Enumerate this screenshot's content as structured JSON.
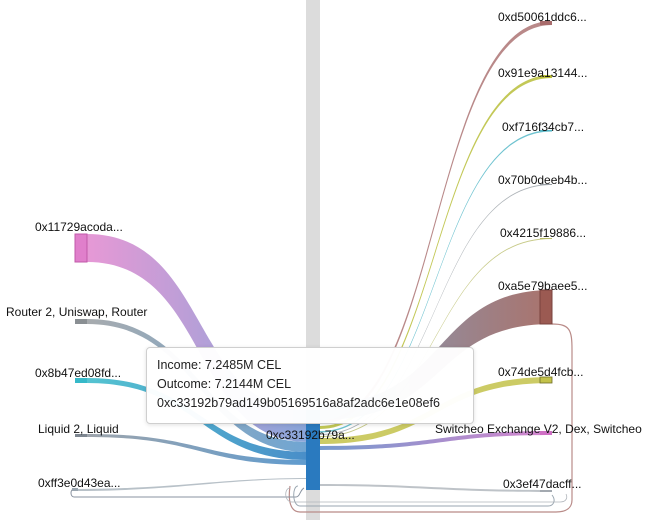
{
  "sources": [
    {
      "label": "0x11729acoda...",
      "color": "#e07fcb"
    },
    {
      "label": "Router 2, Uniswap, Router",
      "color": "#8a8f93"
    },
    {
      "label": "0x8b47ed08fd...",
      "color": "#36b9c9"
    },
    {
      "label": "Liquid 2, Liquid",
      "color": "#7d8690"
    },
    {
      "label": "0xff3e0d43ea...",
      "color": "#9aa6b0"
    }
  ],
  "center": {
    "label": "0xc33192b79a...",
    "color": "#2a7abf"
  },
  "targets": [
    {
      "label": "0xd50061ddc6...",
      "color": "#a86c6c"
    },
    {
      "label": "0x91e9a13144...",
      "color": "#b9be3a"
    },
    {
      "label": "0xf716f34cb7...",
      "color": "#56b8c8"
    },
    {
      "label": "0x70b0deeb4b...",
      "color": "#9aa0a6"
    },
    {
      "label": "0x4215f19886...",
      "color": "#b9bd6a"
    },
    {
      "label": "0xa5e79baee5...",
      "color": "#9b5a52"
    },
    {
      "label": "0x74de5d4fcb...",
      "color": "#c3c24a"
    },
    {
      "label": "Switcheo Exchange V2, Dex, Switcheo",
      "color": "#cf6fc4"
    },
    {
      "label": "0x3ef47dacff...",
      "color": "#a3a9b0"
    }
  ],
  "tooltip": {
    "income": "Income: 7.2485M CEL",
    "outcome": "Outcome: 7.2144M CEL",
    "address": "0xc33192b79ad149b05169516a8af2adc6e1e08ef6"
  }
}
